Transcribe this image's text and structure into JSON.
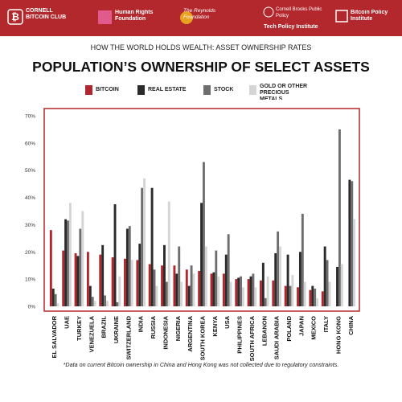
{
  "header": {
    "logos": [
      "CORNELL BITCOIN CLUB",
      "Human Rights Foundation",
      "The Reynolds Foundation",
      "Cornell Brooks Public Policy",
      "Tech Policy Institute",
      "Bitcoin Policy Institute"
    ]
  },
  "chart_data": {
    "type": "bar",
    "subtitle": "HOW THE WORLD HOLDS WEALTH: ASSET OWNERSHIP RATES",
    "title": "POPULATION’S OWNERSHIP OF SELECT ASSETS",
    "footnote": "*Data on current Bitcoin ownership in China and Hong Kong was not collected due to regulatory constraints.",
    "categories": [
      "EL SALVADOR",
      "UAE",
      "TURKEY",
      "VENEZUELA",
      "BRAZIL",
      "UKRAINE",
      "SWITZERLAND",
      "INDIA",
      "RUSSIA",
      "INDONESIA",
      "NIGERIA",
      "ARGENTINA",
      "SOUTH KOREA",
      "KENYA",
      "USA",
      "PHILIPPINES",
      "SOUTH AFRICA",
      "LEBANON",
      "SAUDI ARABIA",
      "POLAND",
      "JAPAN",
      "MEXICO",
      "ITALY",
      "HONG KONG",
      "CHINA"
    ],
    "series": [
      {
        "name": "BITCOIN",
        "color": "#b0282d",
        "values": [
          28,
          20.5,
          19.5,
          20,
          19,
          18,
          17.5,
          17,
          15.5,
          15,
          15,
          13.5,
          13,
          12,
          12,
          10,
          10,
          9.5,
          9.5,
          7.5,
          7,
          6,
          5.5,
          null,
          null
        ]
      },
      {
        "name": "REAL ESTATE",
        "color": "#2b2b2b",
        "values": [
          6.5,
          32,
          18.5,
          7.5,
          22.5,
          37.5,
          28.5,
          23,
          43.5,
          22.5,
          12,
          7.5,
          38,
          12.5,
          19,
          10.5,
          11,
          16,
          19.5,
          19,
          20,
          7.5,
          22,
          14.5,
          46.5
        ]
      },
      {
        "name": "STOCK",
        "color": "#6e6e6e",
        "values": [
          4.5,
          31.5,
          28.5,
          3.5,
          4,
          1.5,
          29.5,
          43.5,
          13.5,
          9,
          22,
          15,
          53,
          20.5,
          26.5,
          11,
          12,
          3,
          27.5,
          7.5,
          34,
          6.5,
          17,
          65,
          46
        ]
      },
      {
        "name": "GOLD OR OTHER PRECIOUS METALS",
        "color": "#d5d5d5",
        "values": [
          1,
          38,
          35,
          2,
          2,
          11,
          17,
          47,
          7.5,
          38.5,
          9,
          12,
          22,
          11,
          9,
          7,
          7,
          11,
          22,
          11.5,
          9,
          3,
          9,
          15.5,
          32
        ]
      }
    ],
    "ylim": [
      0,
      70
    ],
    "yticks": [
      {
        "value": 0,
        "label": "0%"
      },
      {
        "value": 10,
        "label": "10%"
      },
      {
        "value": 20,
        "label": "20%"
      },
      {
        "value": 30,
        "label": "30%"
      },
      {
        "value": 40,
        "label": "40%"
      },
      {
        "value": 50,
        "label": "50%"
      },
      {
        "value": 60,
        "label": "60%"
      },
      {
        "value": 70,
        "label": "70%"
      }
    ],
    "grid": false
  }
}
